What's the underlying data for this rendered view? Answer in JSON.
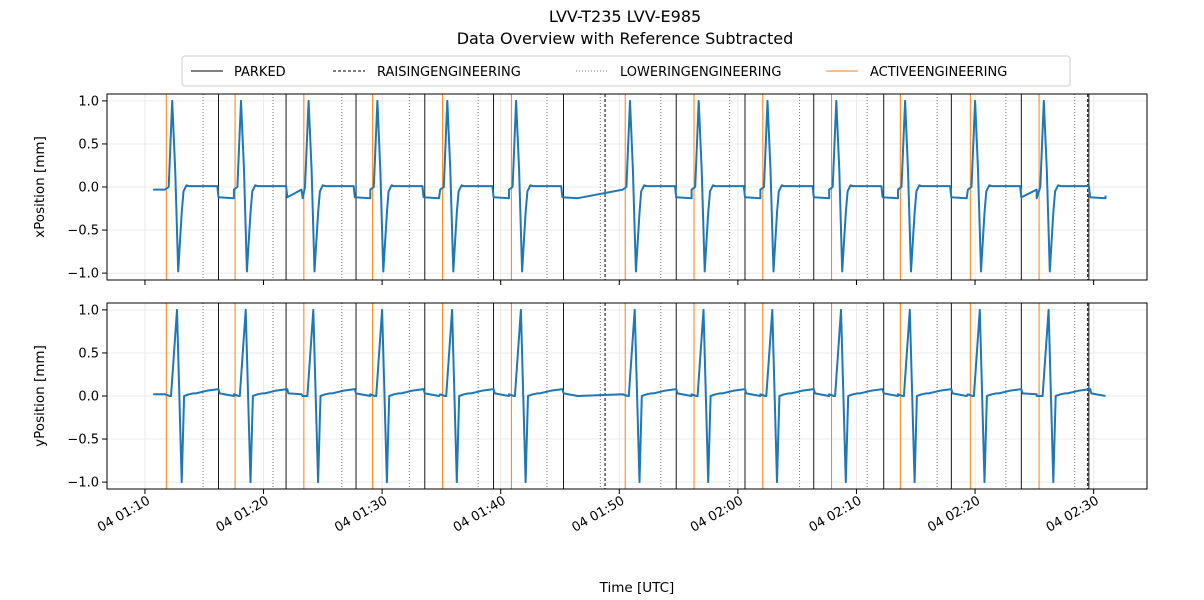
{
  "chart_data": {
    "type": "line",
    "title": "LVV-T235 LVV-E985",
    "subtitle": "Data Overview with Reference Subtracted",
    "xlabel": "Time [UTC]",
    "x_ticks": [
      "04 01:10",
      "04 01:20",
      "04 01:30",
      "04 01:40",
      "04 01:50",
      "04 02:00",
      "04 02:10",
      "04 02:20",
      "04 02:30"
    ],
    "x_tick_minutes": [
      70,
      80,
      90,
      100,
      110,
      120,
      130,
      140,
      150
    ],
    "xlim_minutes": [
      66.8,
      154.5
    ],
    "legend": {
      "placement": "top-center",
      "entries": [
        {
          "label": "PARKED",
          "style": "solid",
          "color": "#000000"
        },
        {
          "label": "RAISINGENGINEERING",
          "style": "dashed",
          "color": "#000000"
        },
        {
          "label": "LOWERINGENGINEERING",
          "style": "dotted",
          "color": "#777777"
        },
        {
          "label": "ACTIVEENGINEERING",
          "style": "solid",
          "color": "#ff7f0e"
        }
      ]
    },
    "cycles_start_minutes": [
      71.7,
      77.5,
      83.2,
      89.0,
      94.9,
      100.7,
      110.3,
      116.1,
      121.9,
      127.7,
      133.5,
      139.4,
      145.2
    ],
    "event_lines": {
      "ACTIVEENGINEERING": [
        71.8,
        77.6,
        83.4,
        89.2,
        95.1,
        100.9,
        110.5,
        116.3,
        122.1,
        127.9,
        133.7,
        139.6,
        145.4
      ],
      "PARKED": [
        76.2,
        81.9,
        87.8,
        93.6,
        99.4,
        105.3,
        114.8,
        120.6,
        126.4,
        132.3,
        138.0,
        143.9,
        149.6
      ],
      "RAISINGENGINEERING": [
        108.8,
        149.5
      ],
      "LOWERINGENGINEERING": [
        74.9,
        80.8,
        86.6,
        92.3,
        98.1,
        103.9,
        108.4,
        113.5,
        119.3,
        125.2,
        130.9,
        136.8,
        142.6,
        148.4
      ]
    },
    "series": [
      {
        "ylabel": "xPosition [mm]",
        "ylim": [
          -1.08,
          1.08
        ],
        "y_ticks": [
          -1.0,
          -0.5,
          0.0,
          0.5,
          1.0
        ],
        "y_tick_labels": [
          "−1.0",
          "−0.5",
          "0.0",
          "0.5",
          "1.0"
        ],
        "color": "#1f77b4",
        "cycle_shape_t": [
          0.0,
          0.3,
          0.6,
          0.85,
          1.1,
          1.4,
          1.55,
          1.8,
          2.0,
          4.4,
          4.5,
          5.8
        ],
        "cycle_shape_y": [
          -0.03,
          0.0,
          1.0,
          0.2,
          -0.98,
          -0.3,
          -0.05,
          0.02,
          0.01,
          0.01,
          -0.12,
          -0.13
        ],
        "x_start": 70.7,
        "x_end": 151.0,
        "gap_value": -0.1
      },
      {
        "ylabel": "yPosition [mm]",
        "ylim": [
          -1.08,
          1.08
        ],
        "y_ticks": [
          -1.0,
          -0.5,
          0.0,
          0.5,
          1.0
        ],
        "y_tick_labels": [
          "−1.0",
          "−0.5",
          "0.0",
          "0.5",
          "1.0"
        ],
        "color": "#1f77b4",
        "cycle_shape_t": [
          0.0,
          0.4,
          0.5,
          1.0,
          1.4,
          1.6,
          2.0,
          2.4,
          2.6,
          3.5,
          4.5,
          4.6,
          5.8
        ],
        "cycle_shape_y": [
          0.02,
          0.0,
          0.0,
          1.0,
          -1.0,
          0.0,
          0.02,
          0.03,
          0.03,
          0.06,
          0.08,
          0.03,
          0.0
        ],
        "x_start": 70.7,
        "x_end": 151.0,
        "gap_value": 0.0
      }
    ]
  }
}
